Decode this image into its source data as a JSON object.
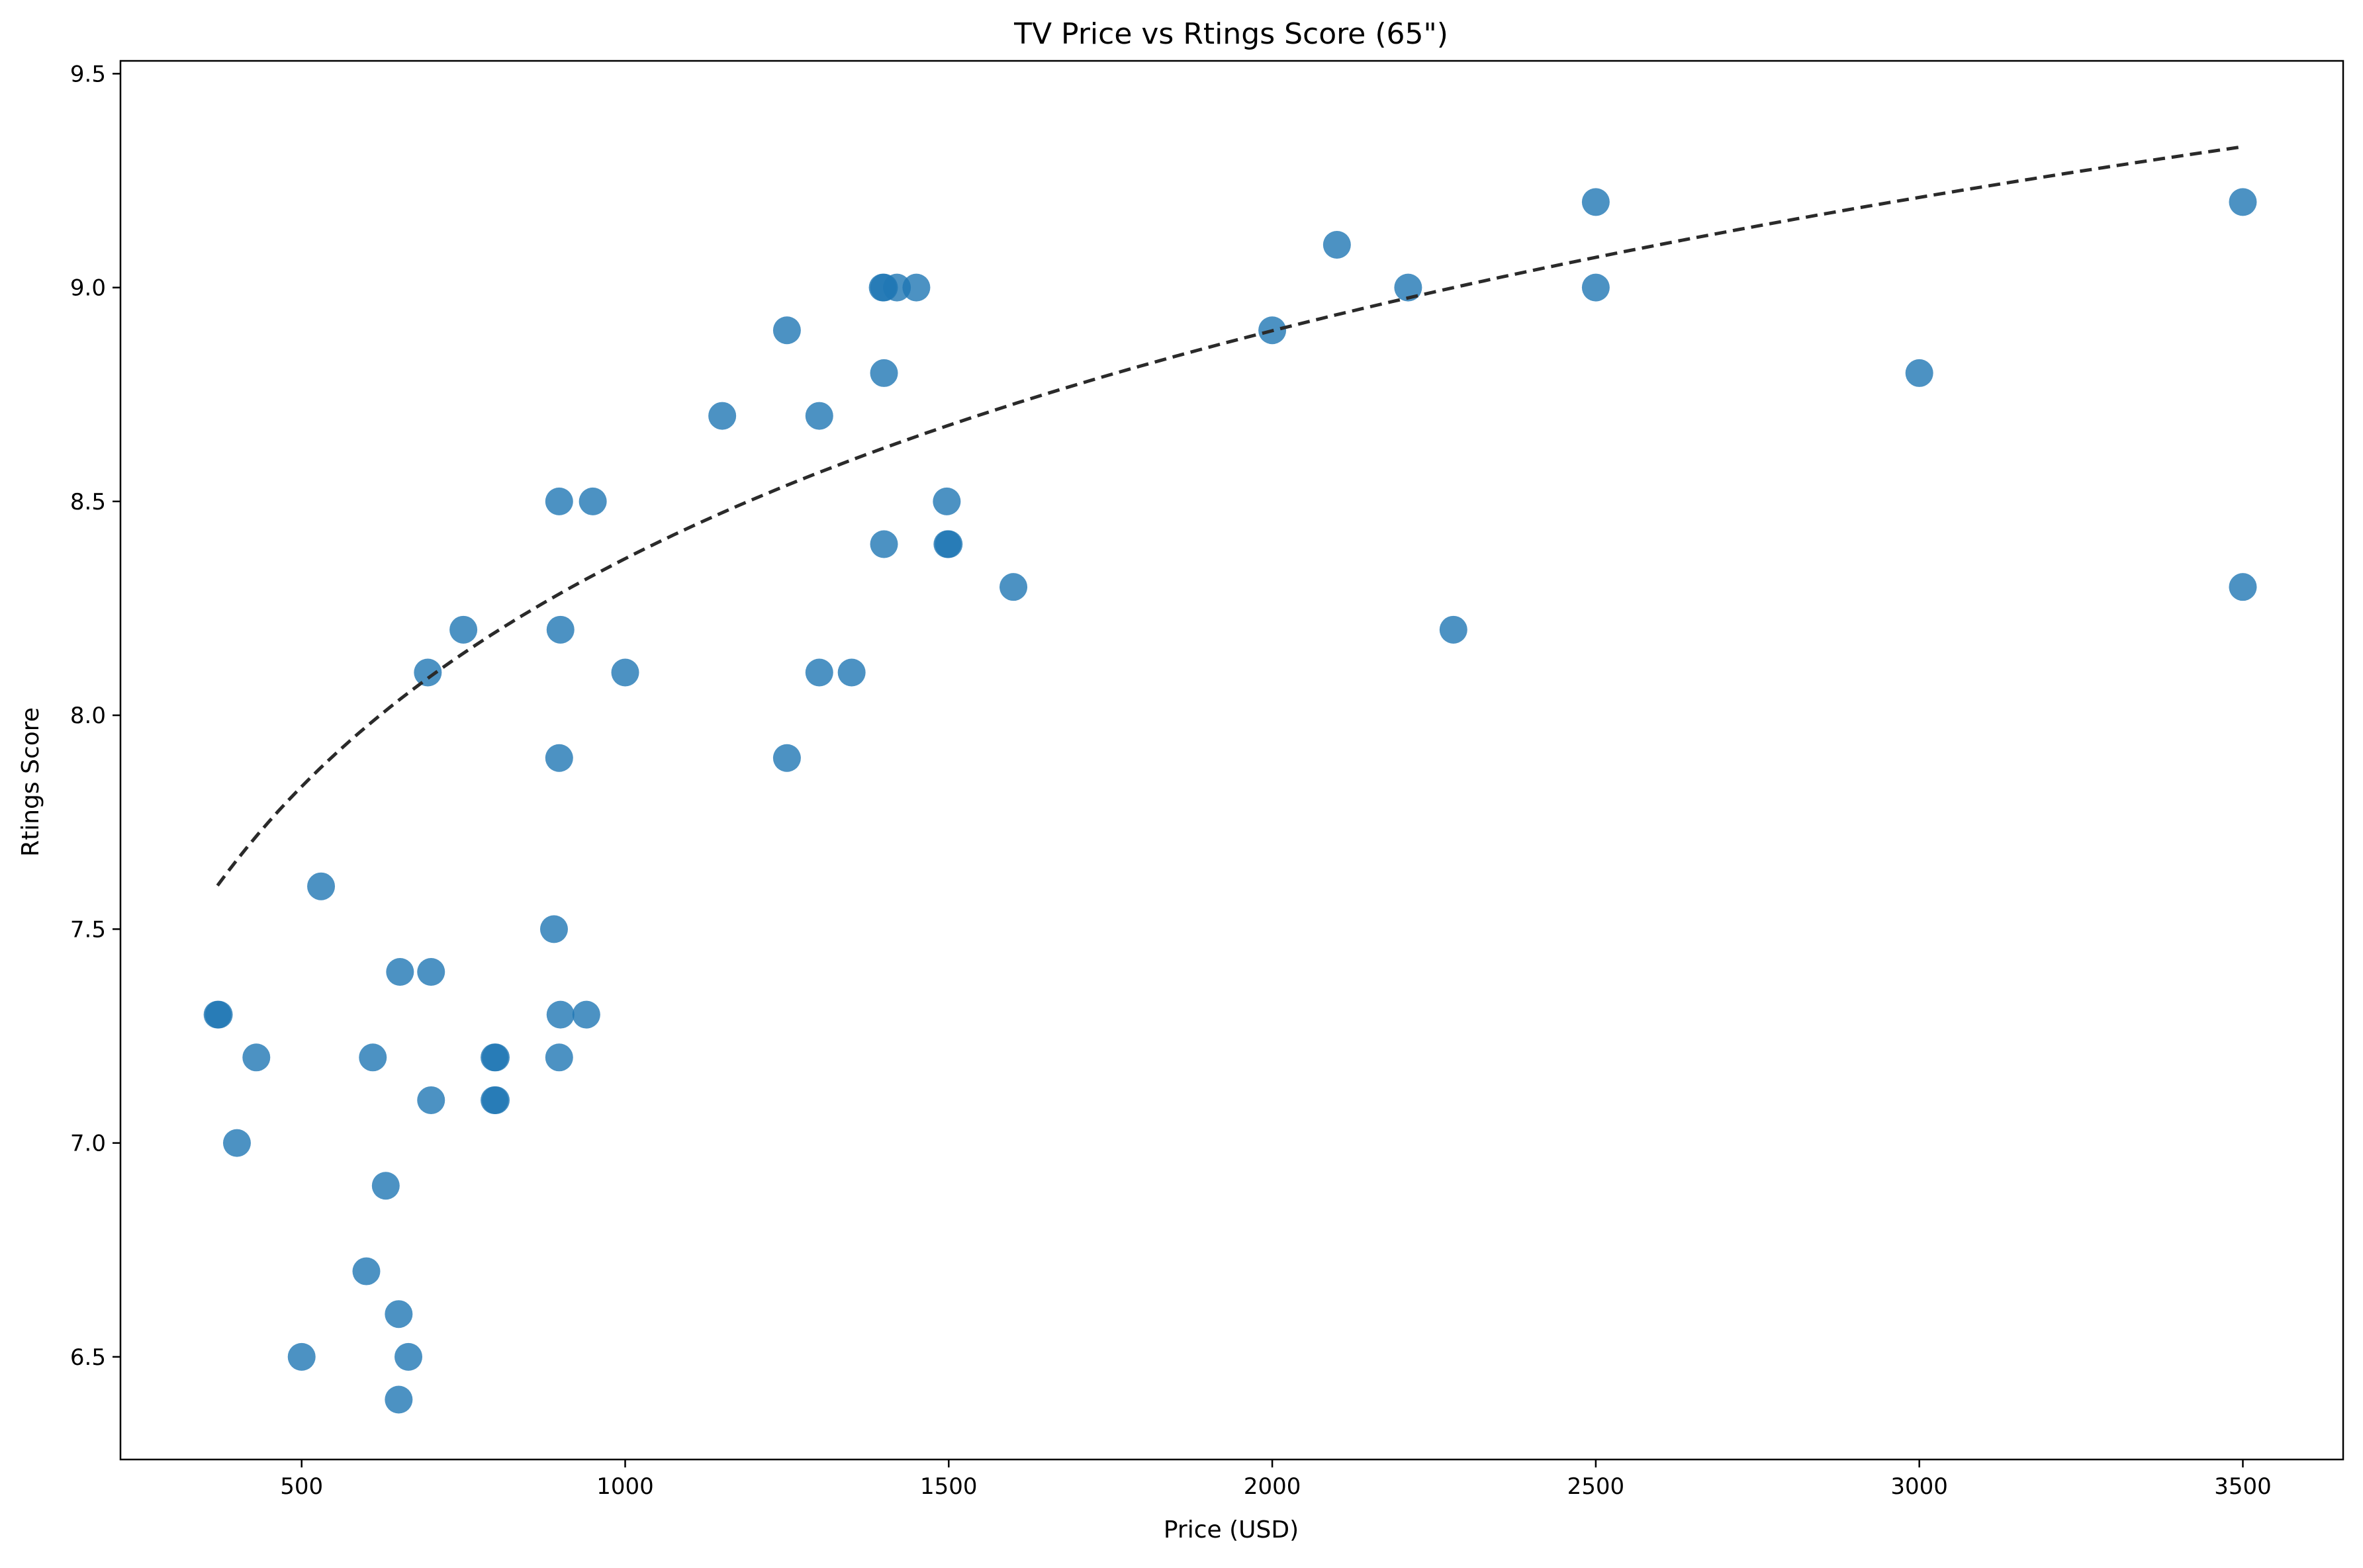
{
  "chart_data": {
    "type": "scatter",
    "title": "TV Price vs Rtings Score (65\")",
    "xlabel": "Price (USD)",
    "ylabel": "Rtings Score",
    "xlim": [
      220,
      3655
    ],
    "ylim": [
      6.26,
      9.53
    ],
    "xticks": [
      500,
      1000,
      1500,
      2000,
      2500,
      3000,
      3500
    ],
    "yticks": [
      6.5,
      7.0,
      7.5,
      8.0,
      8.5,
      9.0,
      9.5
    ],
    "xtick_labels": [
      "500",
      "1000",
      "1500",
      "2000",
      "2500",
      "3000",
      "3500"
    ],
    "ytick_labels": [
      "6.5",
      "7.0",
      "7.5",
      "8.0",
      "8.5",
      "9.0",
      "9.5"
    ],
    "grid": false,
    "legend": "none",
    "marker_color": "#1f77b4",
    "marker_opacity": 0.8,
    "trend_color": "#2a2a2a",
    "trend_style": "dashed",
    "points": [
      {
        "x": 370,
        "y": 7.3
      },
      {
        "x": 372,
        "y": 7.3
      },
      {
        "x": 400,
        "y": 7.0
      },
      {
        "x": 430,
        "y": 7.2
      },
      {
        "x": 500,
        "y": 6.5
      },
      {
        "x": 530,
        "y": 7.6
      },
      {
        "x": 600,
        "y": 6.7
      },
      {
        "x": 610,
        "y": 7.2
      },
      {
        "x": 630,
        "y": 6.9
      },
      {
        "x": 650,
        "y": 6.6
      },
      {
        "x": 650,
        "y": 6.4
      },
      {
        "x": 652,
        "y": 7.4
      },
      {
        "x": 665,
        "y": 6.5
      },
      {
        "x": 695,
        "y": 8.1
      },
      {
        "x": 700,
        "y": 7.4
      },
      {
        "x": 700,
        "y": 7.1
      },
      {
        "x": 750,
        "y": 8.2
      },
      {
        "x": 798,
        "y": 7.2
      },
      {
        "x": 800,
        "y": 7.2
      },
      {
        "x": 798,
        "y": 7.1
      },
      {
        "x": 800,
        "y": 7.1
      },
      {
        "x": 890,
        "y": 7.5
      },
      {
        "x": 898,
        "y": 8.5
      },
      {
        "x": 900,
        "y": 8.2
      },
      {
        "x": 898,
        "y": 7.9
      },
      {
        "x": 900,
        "y": 7.3
      },
      {
        "x": 898,
        "y": 7.2
      },
      {
        "x": 940,
        "y": 7.3
      },
      {
        "x": 950,
        "y": 8.5
      },
      {
        "x": 1000,
        "y": 8.1
      },
      {
        "x": 1150,
        "y": 8.7
      },
      {
        "x": 1250,
        "y": 8.9
      },
      {
        "x": 1250,
        "y": 7.9
      },
      {
        "x": 1300,
        "y": 8.7
      },
      {
        "x": 1300,
        "y": 8.1
      },
      {
        "x": 1350,
        "y": 8.1
      },
      {
        "x": 1398,
        "y": 9.0
      },
      {
        "x": 1400,
        "y": 9.0
      },
      {
        "x": 1420,
        "y": 9.0
      },
      {
        "x": 1450,
        "y": 9.0
      },
      {
        "x": 1400,
        "y": 8.8
      },
      {
        "x": 1400,
        "y": 8.4
      },
      {
        "x": 1497,
        "y": 8.5
      },
      {
        "x": 1498,
        "y": 8.4
      },
      {
        "x": 1500,
        "y": 8.4
      },
      {
        "x": 1600,
        "y": 8.3
      },
      {
        "x": 2000,
        "y": 8.9
      },
      {
        "x": 2100,
        "y": 9.1
      },
      {
        "x": 2210,
        "y": 9.0
      },
      {
        "x": 2280,
        "y": 8.2
      },
      {
        "x": 2500,
        "y": 9.2
      },
      {
        "x": 2500,
        "y": 9.0
      },
      {
        "x": 3000,
        "y": 8.8
      },
      {
        "x": 3500,
        "y": 9.2
      },
      {
        "x": 3500,
        "y": 8.3
      }
    ],
    "trend": {
      "type": "logarithmic",
      "a": 3.0555,
      "b": 0.7688,
      "x_range": [
        370,
        3500
      ]
    }
  }
}
